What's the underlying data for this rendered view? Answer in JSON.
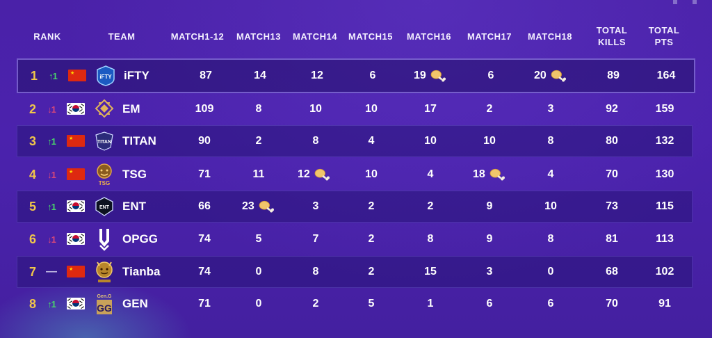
{
  "header": {
    "rank": "RANK",
    "team": "TEAM",
    "match1_12": "MATCH1-12",
    "match13": "MATCH13",
    "match14": "MATCH14",
    "match15": "MATCH15",
    "match16": "MATCH16",
    "match17": "MATCH17",
    "match18": "MATCH18",
    "total_kills_line1": "TOTAL",
    "total_kills_line2": "KILLS",
    "total_pts_line1": "TOTAL",
    "total_pts_line2": "PTS"
  },
  "rows": [
    {
      "rank": "1",
      "trend": "up",
      "trend_text": "↑1",
      "country": "CN",
      "logo_text": "iFTY",
      "team": "iFTY",
      "m1_12": "87",
      "m13": "14",
      "m14": "12",
      "m15": "6",
      "m16": "19",
      "m17": "6",
      "m18": "20",
      "kills": "89",
      "pts": "164",
      "chicken": [
        "m16",
        "m18"
      ]
    },
    {
      "rank": "2",
      "trend": "down",
      "trend_text": "↓1",
      "country": "KR",
      "logo_text": "EM",
      "team": "EM",
      "m1_12": "109",
      "m13": "8",
      "m14": "10",
      "m15": "10",
      "m16": "17",
      "m17": "2",
      "m18": "3",
      "kills": "92",
      "pts": "159",
      "chicken": []
    },
    {
      "rank": "3",
      "trend": "up",
      "trend_text": "↑1",
      "country": "CN",
      "logo_text": "TITAN",
      "team": "TITAN",
      "m1_12": "90",
      "m13": "2",
      "m14": "8",
      "m15": "4",
      "m16": "10",
      "m17": "10",
      "m18": "8",
      "kills": "80",
      "pts": "132",
      "chicken": []
    },
    {
      "rank": "4",
      "trend": "down",
      "trend_text": "↓1",
      "country": "CN",
      "logo_text": "TSG",
      "team": "TSG",
      "m1_12": "71",
      "m13": "11",
      "m14": "12",
      "m15": "10",
      "m16": "4",
      "m17": "18",
      "m18": "4",
      "kills": "70",
      "pts": "130",
      "chicken": [
        "m14",
        "m17"
      ]
    },
    {
      "rank": "5",
      "trend": "up",
      "trend_text": "↑1",
      "country": "KR",
      "logo_text": "ENT",
      "team": "ENT",
      "m1_12": "66",
      "m13": "23",
      "m14": "3",
      "m15": "2",
      "m16": "2",
      "m17": "9",
      "m18": "10",
      "kills": "73",
      "pts": "115",
      "chicken": [
        "m13"
      ]
    },
    {
      "rank": "6",
      "trend": "down",
      "trend_text": "↓1",
      "country": "KR",
      "logo_text": "OPGG",
      "team": "OPGG",
      "m1_12": "74",
      "m13": "5",
      "m14": "7",
      "m15": "2",
      "m16": "8",
      "m17": "9",
      "m18": "8",
      "kills": "81",
      "pts": "113",
      "chicken": []
    },
    {
      "rank": "7",
      "trend": "flat",
      "trend_text": "—",
      "country": "CN",
      "logo_text": "TIANBA",
      "team": "Tianba",
      "m1_12": "74",
      "m13": "0",
      "m14": "8",
      "m15": "2",
      "m16": "15",
      "m17": "3",
      "m18": "0",
      "kills": "68",
      "pts": "102",
      "chicken": []
    },
    {
      "rank": "8",
      "trend": "up",
      "trend_text": "↑1",
      "country": "KR",
      "logo_text": "Gen.G",
      "team": "GEN",
      "m1_12": "71",
      "m13": "0",
      "m14": "2",
      "m15": "5",
      "m16": "1",
      "m17": "6",
      "m18": "6",
      "kills": "70",
      "pts": "91",
      "chicken": []
    }
  ],
  "colors": {
    "background": "#4a21a8",
    "rank_gold": "#f0c64a",
    "trend_up": "#49d36b",
    "trend_down": "#d6477a",
    "chicken": "#f1c56b"
  }
}
